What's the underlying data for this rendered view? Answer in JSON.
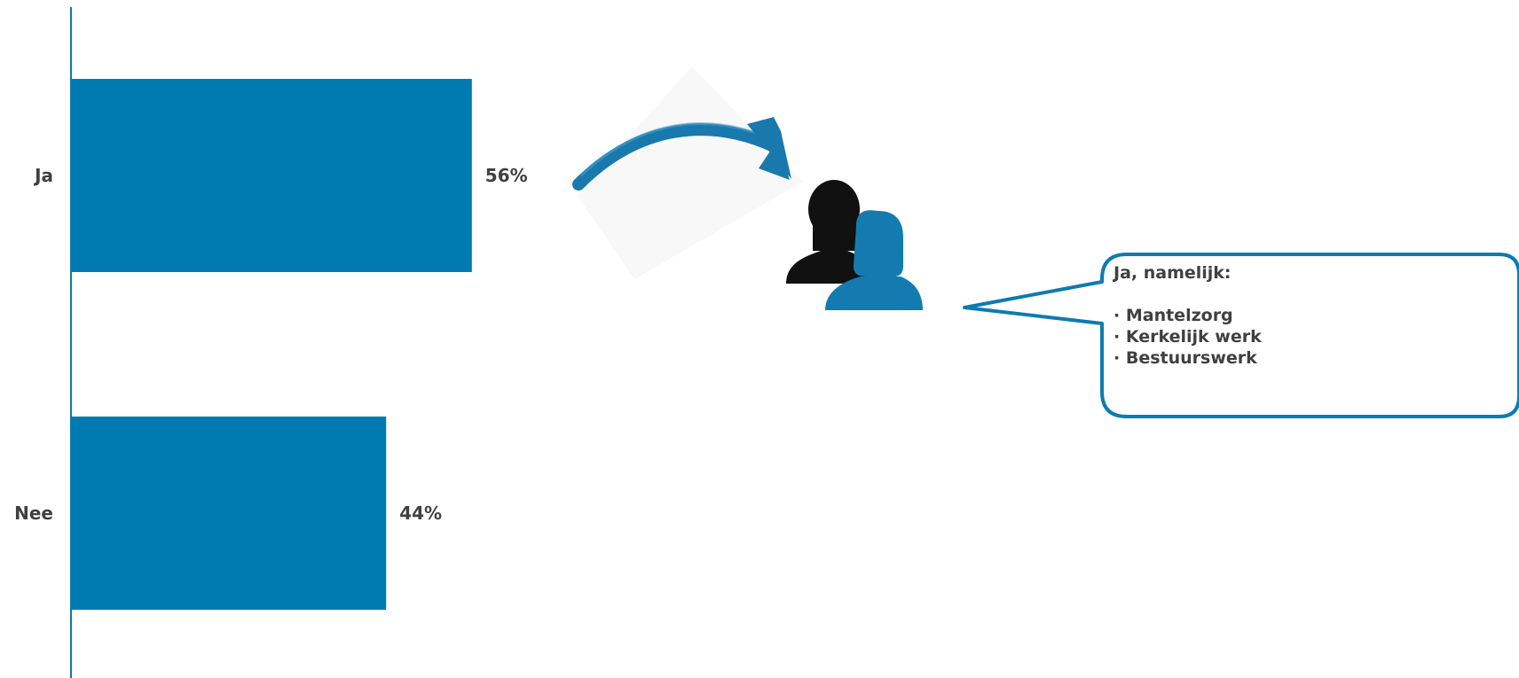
{
  "chart_data": {
    "type": "bar",
    "orientation": "horizontal",
    "categories": [
      "Ja",
      "Nee"
    ],
    "values": [
      56,
      44
    ],
    "value_labels": [
      "56%",
      "44%"
    ],
    "xlim": [
      0,
      100
    ],
    "bar_color": "#007bb2"
  },
  "callout": {
    "heading": "Ja, namelijk:",
    "items": [
      "Mantelzorg",
      "Kerkelijk werk",
      "Bestuurswerk"
    ],
    "border_color": "#0e7bb1"
  },
  "icons": {
    "arrow": "curved-arrow-icon",
    "people": "people-icon"
  },
  "colors": {
    "primary": "#007bb2",
    "text": "#404040",
    "person_back": "#111111"
  }
}
